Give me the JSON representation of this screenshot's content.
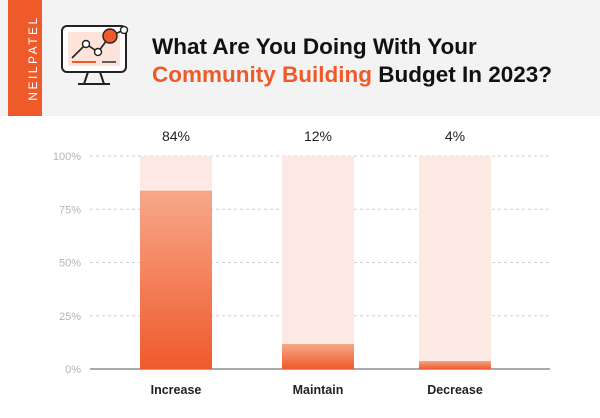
{
  "brand": {
    "name": "NEILPATEL"
  },
  "title": {
    "line1": "What Are You Doing With Your",
    "line2_highlight": "Community Building",
    "line2_rest": " Budget In 2023?"
  },
  "colors": {
    "accent": "#ef5a2b",
    "bar_background": "#fde9e3",
    "bar_fill_top": "#f7a88a",
    "bar_fill_bottom": "#ef5a2b",
    "header_bg": "#f3f3f3"
  },
  "icons": {
    "header": "analytics-monitor-icon"
  },
  "chart_data": {
    "type": "bar",
    "categories": [
      "Increase",
      "Maintain",
      "Decrease"
    ],
    "values": [
      84,
      12,
      4
    ],
    "data_labels": [
      "84%",
      "12%",
      "4%"
    ],
    "y_ticks": [
      "0%",
      "25%",
      "50%",
      "75%",
      "100%"
    ],
    "ylim": [
      0,
      100
    ],
    "grid": true,
    "legend": "none"
  }
}
